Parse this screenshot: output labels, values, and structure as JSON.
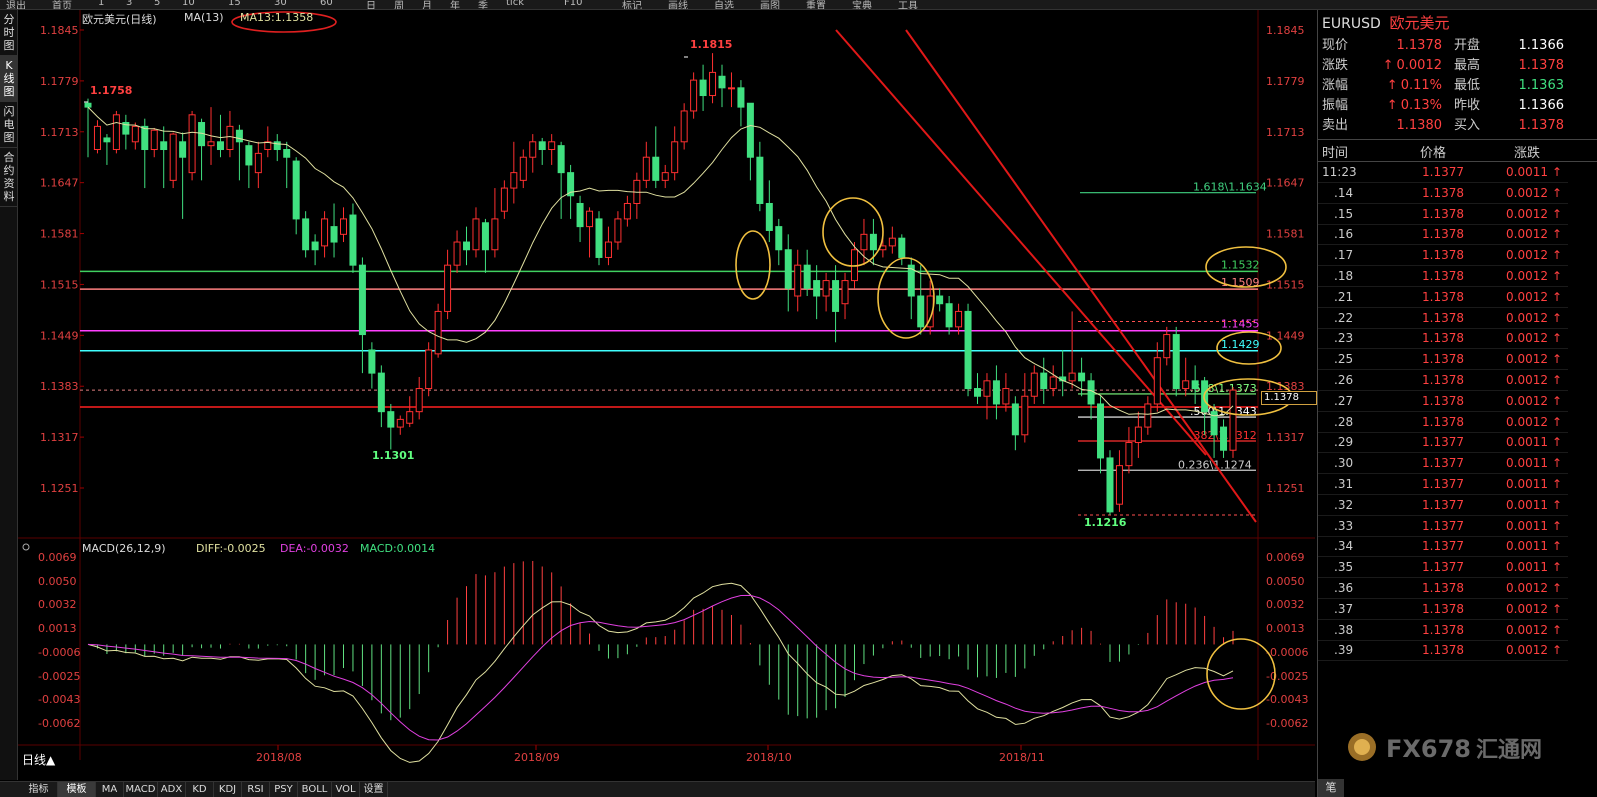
{
  "toolbar": {
    "items": [
      "退出",
      "首页",
      "1",
      "3",
      "5",
      "10",
      "15",
      "30",
      "60",
      "日",
      "周",
      "月",
      "年",
      "季",
      "tick",
      "F10",
      "标记",
      "画线",
      "自选",
      "画图",
      "重置",
      "宝典",
      "工具"
    ]
  },
  "left_tabs": [
    {
      "label": "分时图"
    },
    {
      "label": "K线图"
    },
    {
      "label": "闪电图"
    },
    {
      "label": "合约资料"
    }
  ],
  "chart_header": {
    "name": "欧元美元(日线)",
    "ma_label": "MA(13)",
    "ma_value": "MA13:1.1358"
  },
  "macd_header": {
    "label": "MACD(26,12,9)",
    "diff": "DIFF:-0.0025",
    "dea": "DEA:-0.0032",
    "macd": "MACD:0.0014"
  },
  "price_axis": [
    "1.1845",
    "1.1779",
    "1.1713",
    "1.1647",
    "1.1581",
    "1.1515",
    "1.1449",
    "1.1383",
    "1.1317",
    "1.1251"
  ],
  "macd_axis": [
    "0.0069",
    "0.0050",
    "0.0032",
    "0.0013",
    "-0.0006",
    "-0.0025",
    "-0.0043",
    "-0.0062"
  ],
  "date_axis": [
    "2018/08",
    "2018/09",
    "2018/10",
    "2018/11"
  ],
  "annotations": {
    "high": "1.1815",
    "left_high": "1.1758",
    "low1": "1.1301",
    "low2": "1.1216",
    "current_price": "1.1378"
  },
  "levels": [
    {
      "label": "1.1532",
      "color": "#40d060",
      "price": 1.1532
    },
    {
      "label": "1.1509",
      "color": "#ff8080",
      "price": 1.1509
    },
    {
      "label": "1.1455",
      "color": "#ff40ff",
      "price": 1.1455
    },
    {
      "label": "1.1429",
      "color": "#40ffff",
      "price": 1.1429
    },
    {
      "label": "",
      "color": "#ff2020",
      "price": 1.1356
    }
  ],
  "fib": [
    {
      "label": "1.618\\1.1634",
      "color": "#40d080",
      "price": 1.1634
    },
    {
      "label": ".618\\1.1373",
      "color": "#80ff80",
      "price": 1.1373
    },
    {
      "label": ".500\\1.1343",
      "color": "#ffffff",
      "price": 1.1343
    },
    {
      "label": ".382\\1.1312",
      "color": "#ff3030",
      "price": 1.1312
    },
    {
      "label": "0.236\\1.1274",
      "color": "#cccccc",
      "price": 1.1274
    }
  ],
  "bottom_tabs": [
    "指标",
    "模板",
    "MA",
    "MACD",
    "ADX",
    "KD",
    "KDJ",
    "RSI",
    "PSY",
    "BOLL",
    "VOL",
    "设置"
  ],
  "period_label": "日线▲",
  "panel": {
    "symbol": "EURUSD",
    "name": "欧元美元",
    "quote": [
      {
        "k1": "现价",
        "v1": "1.1378",
        "k2": "开盘",
        "v2": "1.1366"
      },
      {
        "k1": "涨跌",
        "v1": "0.0012",
        "k2": "最高",
        "v2": "1.1378"
      },
      {
        "k1": "涨幅",
        "v1": "0.11%",
        "k2": "最低",
        "v2": "1.1363"
      },
      {
        "k1": "振幅",
        "v1": "0.13%",
        "k2": "昨收",
        "v2": "1.1366"
      },
      {
        "k1": "卖出",
        "v1": "1.1380",
        "k2": "买入",
        "v2": "1.1378"
      }
    ],
    "tick_headers": [
      "时间",
      "价格",
      "涨跌"
    ],
    "ticks": [
      {
        "t": "11:23",
        "p": "1.1377",
        "c": "0.0011"
      },
      {
        "t": ".14",
        "p": "1.1378",
        "c": "0.0012"
      },
      {
        "t": ".15",
        "p": "1.1378",
        "c": "0.0012"
      },
      {
        "t": ".16",
        "p": "1.1378",
        "c": "0.0012"
      },
      {
        "t": ".17",
        "p": "1.1378",
        "c": "0.0012"
      },
      {
        "t": ".18",
        "p": "1.1378",
        "c": "0.0012"
      },
      {
        "t": ".21",
        "p": "1.1378",
        "c": "0.0012"
      },
      {
        "t": ".22",
        "p": "1.1378",
        "c": "0.0012"
      },
      {
        "t": ".23",
        "p": "1.1378",
        "c": "0.0012"
      },
      {
        "t": ".25",
        "p": "1.1378",
        "c": "0.0012"
      },
      {
        "t": ".26",
        "p": "1.1378",
        "c": "0.0012"
      },
      {
        "t": ".27",
        "p": "1.1378",
        "c": "0.0012"
      },
      {
        "t": ".28",
        "p": "1.1378",
        "c": "0.0012"
      },
      {
        "t": ".29",
        "p": "1.1377",
        "c": "0.0011"
      },
      {
        "t": ".30",
        "p": "1.1377",
        "c": "0.0011"
      },
      {
        "t": ".31",
        "p": "1.1377",
        "c": "0.0011"
      },
      {
        "t": ".32",
        "p": "1.1377",
        "c": "0.0011"
      },
      {
        "t": ".33",
        "p": "1.1377",
        "c": "0.0011"
      },
      {
        "t": ".34",
        "p": "1.1377",
        "c": "0.0011"
      },
      {
        "t": ".35",
        "p": "1.1377",
        "c": "0.0011"
      },
      {
        "t": ".36",
        "p": "1.1378",
        "c": "0.0012"
      },
      {
        "t": ".37",
        "p": "1.1378",
        "c": "0.0012"
      },
      {
        "t": ".38",
        "p": "1.1378",
        "c": "0.0012"
      },
      {
        "t": ".39",
        "p": "1.1378",
        "c": "0.0012"
      }
    ],
    "footer_tab": "笔"
  },
  "watermark": {
    "brand": "FX678",
    "cn": "汇通网"
  },
  "colors": {
    "up": "#ff3030",
    "down": "#40e080",
    "axis": "#e04040",
    "ma": "#e0e0a0",
    "dif": "#e0e0a0",
    "dea": "#e040e0",
    "ellipse": "#f0c040"
  }
}
